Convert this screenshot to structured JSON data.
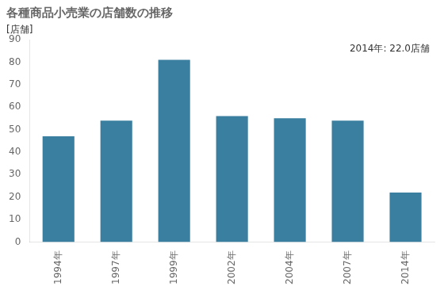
{
  "chart_data": {
    "type": "bar",
    "title": "各種商品小売業の店舗数の推移",
    "ylabel": "[店舗]",
    "annotation": "2014年: 22.0店舗",
    "categories": [
      "1994年",
      "1997年",
      "1999年",
      "2002年",
      "2004年",
      "2007年",
      "2014年"
    ],
    "values": [
      47,
      54,
      81,
      56,
      55,
      54,
      22
    ],
    "color": "#3a7fa0",
    "ylim": [
      0,
      90
    ],
    "yticks": [
      0,
      10,
      20,
      30,
      40,
      50,
      60,
      70,
      80,
      90
    ],
    "grid": false
  }
}
